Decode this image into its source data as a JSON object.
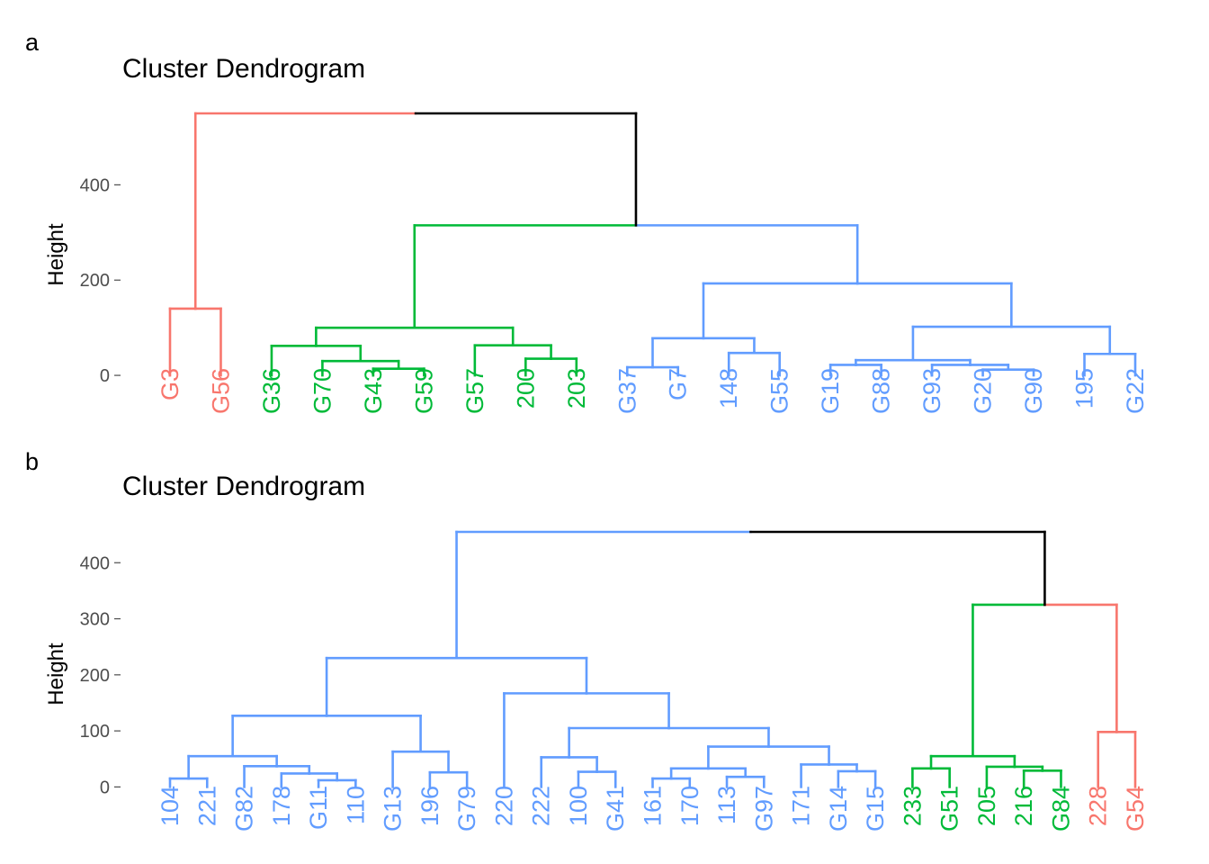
{
  "panels": [
    {
      "label": "a",
      "title": "Cluster Dendrogram"
    },
    {
      "label": "b",
      "title": "Cluster Dendrogram"
    }
  ],
  "colors": {
    "red": "#F8766D",
    "green": "#00BA38",
    "blue": "#619CFF",
    "black": "#000000",
    "axis_text": "#4D4D4D"
  },
  "chart_data": [
    {
      "type": "dendrogram",
      "title": "Cluster Dendrogram",
      "ylabel": "Height",
      "yticks": [
        0,
        200,
        400
      ],
      "ylim": [
        -100,
        550
      ],
      "leaves": [
        {
          "label": "G3",
          "cluster": "red"
        },
        {
          "label": "G56",
          "cluster": "red"
        },
        {
          "label": "G36",
          "cluster": "green"
        },
        {
          "label": "G70",
          "cluster": "green"
        },
        {
          "label": "G43",
          "cluster": "green"
        },
        {
          "label": "G59",
          "cluster": "green"
        },
        {
          "label": "G57",
          "cluster": "green"
        },
        {
          "label": "200",
          "cluster": "green"
        },
        {
          "label": "203",
          "cluster": "green"
        },
        {
          "label": "G37",
          "cluster": "blue"
        },
        {
          "label": "G7",
          "cluster": "blue"
        },
        {
          "label": "148",
          "cluster": "blue"
        },
        {
          "label": "G55",
          "cluster": "blue"
        },
        {
          "label": "G19",
          "cluster": "blue"
        },
        {
          "label": "G88",
          "cluster": "blue"
        },
        {
          "label": "G93",
          "cluster": "blue"
        },
        {
          "label": "G20",
          "cluster": "blue"
        },
        {
          "label": "G90",
          "cluster": "blue"
        },
        {
          "label": "195",
          "cluster": "blue"
        },
        {
          "label": "G22",
          "cluster": "blue"
        }
      ],
      "merges": [
        {
          "a": 0,
          "b": 1,
          "height": 140,
          "cluster": "red"
        },
        {
          "a": 4,
          "b": 5,
          "height": 14,
          "cluster": "green"
        },
        {
          "a": 3,
          "b": "m1",
          "height": 30,
          "cluster": "green"
        },
        {
          "a": 2,
          "b": "m2",
          "height": 62,
          "cluster": "green"
        },
        {
          "a": 7,
          "b": 8,
          "height": 35,
          "cluster": "green"
        },
        {
          "a": 6,
          "b": "m4",
          "height": 63,
          "cluster": "green"
        },
        {
          "a": "m3",
          "b": "m5",
          "height": 100,
          "cluster": "green"
        },
        {
          "a": 9,
          "b": 10,
          "height": 17,
          "cluster": "blue"
        },
        {
          "a": 11,
          "b": 12,
          "height": 47,
          "cluster": "blue"
        },
        {
          "a": "m7",
          "b": "m8",
          "height": 78,
          "cluster": "blue"
        },
        {
          "a": 17,
          "b": 16,
          "height": 12,
          "cluster": "blue"
        },
        {
          "a": 15,
          "b": "m10",
          "height": 22,
          "cluster": "blue"
        },
        {
          "a": 13,
          "b": 14,
          "height": 22,
          "cluster": "blue"
        },
        {
          "a": "m12",
          "b": "m11",
          "height": 32,
          "cluster": "blue"
        },
        {
          "a": 18,
          "b": 19,
          "height": 45,
          "cluster": "blue"
        },
        {
          "a": "m13",
          "b": "m14",
          "height": 102,
          "cluster": "blue"
        },
        {
          "a": "m9",
          "b": "m15",
          "height": 193,
          "cluster": "blue"
        },
        {
          "a": "m6",
          "b": "m16",
          "height": 315,
          "cluster": "blue",
          "left_cluster": "green"
        },
        {
          "a": "m0",
          "b": "m17",
          "height": 550,
          "cluster": "black",
          "left_cluster": "red"
        }
      ]
    },
    {
      "type": "dendrogram",
      "title": "Cluster Dendrogram",
      "ylabel": "Height",
      "yticks": [
        0,
        100,
        200,
        300,
        400
      ],
      "ylim": [
        -70,
        455
      ],
      "leaves": [
        {
          "label": "104",
          "cluster": "blue"
        },
        {
          "label": "221",
          "cluster": "blue"
        },
        {
          "label": "G82",
          "cluster": "blue"
        },
        {
          "label": "178",
          "cluster": "blue"
        },
        {
          "label": "G11",
          "cluster": "blue"
        },
        {
          "label": "110",
          "cluster": "blue"
        },
        {
          "label": "G13",
          "cluster": "blue"
        },
        {
          "label": "196",
          "cluster": "blue"
        },
        {
          "label": "G79",
          "cluster": "blue"
        },
        {
          "label": "220",
          "cluster": "blue"
        },
        {
          "label": "222",
          "cluster": "blue"
        },
        {
          "label": "100",
          "cluster": "blue"
        },
        {
          "label": "G41",
          "cluster": "blue"
        },
        {
          "label": "161",
          "cluster": "blue"
        },
        {
          "label": "170",
          "cluster": "blue"
        },
        {
          "label": "113",
          "cluster": "blue"
        },
        {
          "label": "G97",
          "cluster": "blue"
        },
        {
          "label": "171",
          "cluster": "blue"
        },
        {
          "label": "G14",
          "cluster": "blue"
        },
        {
          "label": "G15",
          "cluster": "blue"
        },
        {
          "label": "233",
          "cluster": "green"
        },
        {
          "label": "G51",
          "cluster": "green"
        },
        {
          "label": "205",
          "cluster": "green"
        },
        {
          "label": "216",
          "cluster": "green"
        },
        {
          "label": "G84",
          "cluster": "green"
        },
        {
          "label": "228",
          "cluster": "red"
        },
        {
          "label": "G54",
          "cluster": "red"
        }
      ],
      "merges": [
        {
          "a": 0,
          "b": 1,
          "height": 15,
          "cluster": "blue"
        },
        {
          "a": 4,
          "b": 5,
          "height": 12,
          "cluster": "blue"
        },
        {
          "a": 3,
          "b": "m1",
          "height": 24,
          "cluster": "blue"
        },
        {
          "a": 2,
          "b": "m2",
          "height": 37,
          "cluster": "blue"
        },
        {
          "a": "m0",
          "b": "m3",
          "height": 55,
          "cluster": "blue"
        },
        {
          "a": 7,
          "b": 8,
          "height": 26,
          "cluster": "blue"
        },
        {
          "a": 6,
          "b": "m5",
          "height": 63,
          "cluster": "blue"
        },
        {
          "a": "m4",
          "b": "m6",
          "height": 127,
          "cluster": "blue"
        },
        {
          "a": 11,
          "b": 12,
          "height": 27,
          "cluster": "blue"
        },
        {
          "a": 10,
          "b": "m8",
          "height": 53,
          "cluster": "blue"
        },
        {
          "a": 13,
          "b": 14,
          "height": 15,
          "cluster": "blue"
        },
        {
          "a": 15,
          "b": 16,
          "height": 18,
          "cluster": "blue"
        },
        {
          "a": "m10",
          "b": "m11",
          "height": 33,
          "cluster": "blue"
        },
        {
          "a": 18,
          "b": 19,
          "height": 28,
          "cluster": "blue"
        },
        {
          "a": 17,
          "b": "m13",
          "height": 40,
          "cluster": "blue"
        },
        {
          "a": "m12",
          "b": "m14",
          "height": 72,
          "cluster": "blue"
        },
        {
          "a": "m9",
          "b": "m15",
          "height": 105,
          "cluster": "blue"
        },
        {
          "a": 9,
          "b": "m16",
          "height": 167,
          "cluster": "blue"
        },
        {
          "a": "m7",
          "b": "m17",
          "height": 230,
          "cluster": "blue"
        },
        {
          "a": 20,
          "b": 21,
          "height": 33,
          "cluster": "green"
        },
        {
          "a": 23,
          "b": 24,
          "height": 29,
          "cluster": "green"
        },
        {
          "a": 22,
          "b": "m20",
          "height": 36,
          "cluster": "green"
        },
        {
          "a": "m19",
          "b": "m21",
          "height": 55,
          "cluster": "green"
        },
        {
          "a": 25,
          "b": 26,
          "height": 98,
          "cluster": "red"
        },
        {
          "a": "m22",
          "b": "m23",
          "height": 325,
          "cluster": "red",
          "left_cluster": "green"
        },
        {
          "a": "m18",
          "b": "m24",
          "height": 455,
          "cluster": "black",
          "left_cluster": "blue"
        }
      ]
    }
  ]
}
